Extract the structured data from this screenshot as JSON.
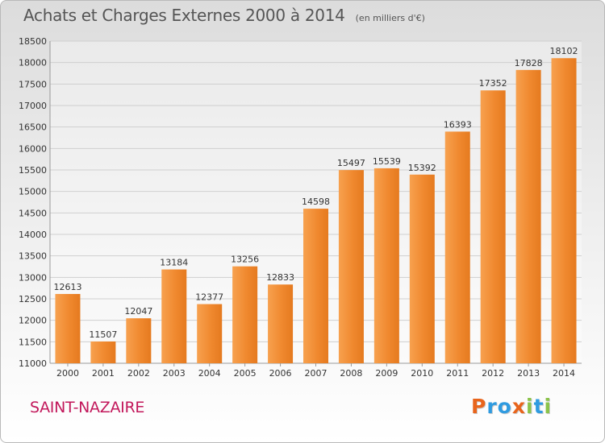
{
  "chart_data": {
    "type": "bar",
    "title": "Achats et Charges Externes 2000 à 2014",
    "subtitle": "(en milliers d'€)",
    "categories": [
      "2000",
      "2001",
      "2002",
      "2003",
      "2004",
      "2005",
      "2006",
      "2007",
      "2008",
      "2009",
      "2010",
      "2011",
      "2012",
      "2013",
      "2014"
    ],
    "values": [
      12613,
      11507,
      12047,
      13184,
      12377,
      13256,
      12833,
      14598,
      15497,
      15539,
      15392,
      16393,
      17352,
      17828,
      18102
    ],
    "ylim": [
      11000,
      18500
    ],
    "yticks": [
      11000,
      11500,
      12000,
      12500,
      13000,
      13500,
      14000,
      14500,
      15000,
      15500,
      16000,
      16500,
      17000,
      17500,
      18000,
      18500
    ],
    "grid": true,
    "bar_color": "#f0892f"
  },
  "footer": {
    "town": "SAINT-NAZAIRE",
    "logo_letters": [
      "P",
      "r",
      "o",
      "x",
      "i",
      "t",
      "i"
    ],
    "logo_colors": [
      "#e8641b",
      "#2f9be0",
      "#2f9be0",
      "#e8641b",
      "#8bc34a",
      "#2f9be0",
      "#8bc34a"
    ]
  }
}
